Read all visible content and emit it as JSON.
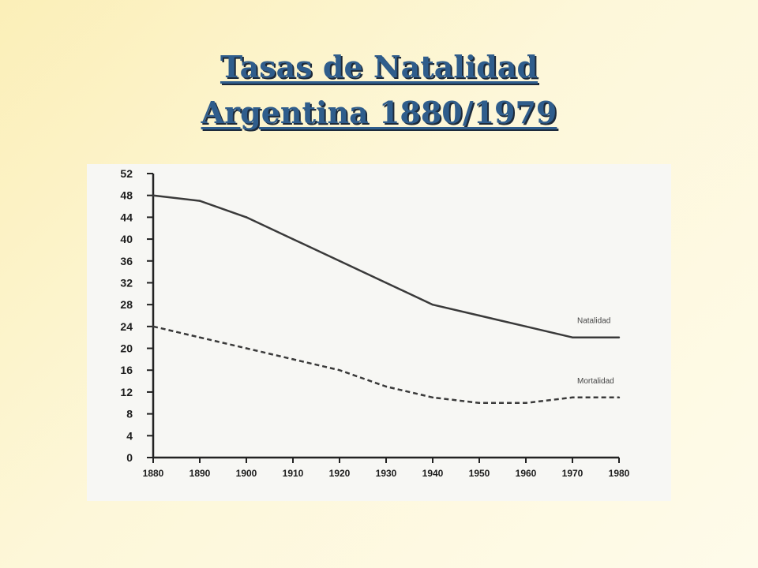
{
  "slide": {
    "title_line1": "Tasas de Natalidad",
    "title_line2": "Argentina 1880/1979"
  },
  "colors": {
    "title": "#2f5d8c",
    "line": "#3a3a3a"
  },
  "chart_data": {
    "type": "line",
    "title": "",
    "xlabel": "",
    "ylabel": "",
    "x": [
      1880,
      1890,
      1900,
      1910,
      1920,
      1930,
      1940,
      1950,
      1960,
      1970,
      1980
    ],
    "x_tick_labels": [
      "1880",
      "1890",
      "1900",
      "1910",
      "1920",
      "1930",
      "1940",
      "1950",
      "1960",
      "1970",
      "1980"
    ],
    "y_ticks": [
      0,
      4,
      8,
      12,
      16,
      20,
      24,
      28,
      32,
      36,
      40,
      44,
      48,
      52
    ],
    "ylim": [
      0,
      52
    ],
    "xlim": [
      1880,
      1980
    ],
    "grid": false,
    "legend": "none",
    "series": [
      {
        "name": "Natalidad",
        "style": "solid",
        "values": [
          48,
          47,
          44,
          40,
          36,
          32,
          28,
          26,
          24,
          22,
          22
        ]
      },
      {
        "name": "Mortalidad",
        "style": "dashed",
        "values": [
          24,
          22,
          20,
          18,
          16,
          13,
          11,
          10,
          10,
          11,
          11
        ]
      }
    ]
  }
}
